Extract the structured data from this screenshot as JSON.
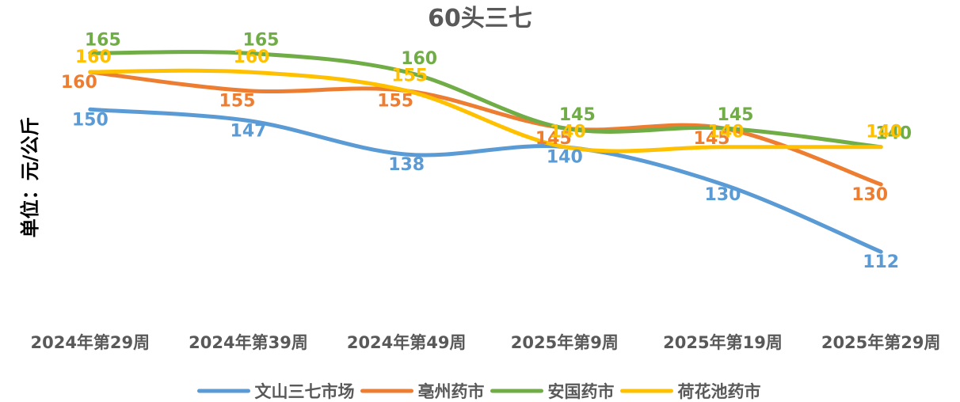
{
  "chart_data": {
    "type": "line",
    "title": "60头三七",
    "ylabel": "单位：元/公斤",
    "xlabel": "",
    "ylim": [
      100,
      175
    ],
    "grid": false,
    "legend_position": "bottom",
    "categories": [
      "2024年第29周",
      "2024年第39周",
      "2024年第49周",
      "2025年第9周",
      "2025年第19周",
      "2025年第29周"
    ],
    "series": [
      {
        "name": "文山三七市场",
        "color": "#5B9BD5",
        "values": [
          150,
          147,
          138,
          140,
          130,
          112
        ]
      },
      {
        "name": "亳州药市",
        "color": "#ED7D31",
        "values": [
          160,
          155,
          155,
          145,
          145,
          130
        ]
      },
      {
        "name": "安国药市",
        "color": "#70AD47",
        "values": [
          165,
          165,
          160,
          145,
          145,
          140
        ]
      },
      {
        "name": "荷花池药市",
        "color": "#FFC000",
        "values": [
          160,
          160,
          155,
          140,
          140,
          140
        ]
      }
    ]
  }
}
